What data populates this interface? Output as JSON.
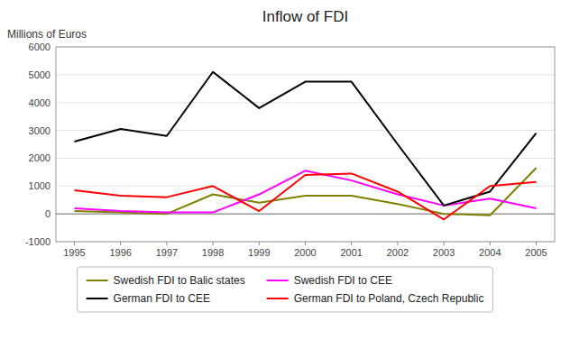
{
  "chart_data": {
    "type": "line",
    "title": "Inflow of FDI",
    "ylabel": "Millions of Euros",
    "x": [
      1995,
      1996,
      1997,
      1998,
      1999,
      2000,
      2001,
      2002,
      2003,
      2004,
      2005
    ],
    "xlim": [
      1994.6,
      2005.4
    ],
    "xticks": [
      1995,
      1996,
      1997,
      1998,
      1999,
      2000,
      2001,
      2002,
      2003,
      2004,
      2005
    ],
    "ylim": [
      -1000,
      6000
    ],
    "yticks": [
      -1000,
      0,
      1000,
      2000,
      3000,
      4000,
      5000,
      6000
    ],
    "grid": true,
    "legend": "bottom",
    "series": [
      {
        "name": "Swedish FDI to Balic states",
        "color": "#808000",
        "values": [
          100,
          50,
          0,
          700,
          400,
          650,
          650,
          350,
          0,
          -50,
          1650
        ]
      },
      {
        "name": "Swedish FDI to CEE",
        "color": "#ff00ff",
        "values": [
          200,
          100,
          50,
          50,
          700,
          1550,
          1200,
          700,
          300,
          550,
          200
        ]
      },
      {
        "name": "German FDI to CEE",
        "color": "#000000",
        "values": [
          2600,
          3050,
          2800,
          5100,
          3800,
          4750,
          4750,
          2500,
          300,
          800,
          2900
        ]
      },
      {
        "name": "German FDI to Poland, Czech Republic",
        "color": "#ff0000",
        "values": [
          850,
          650,
          600,
          1000,
          100,
          1400,
          1450,
          800,
          -200,
          1000,
          1150
        ]
      }
    ]
  }
}
